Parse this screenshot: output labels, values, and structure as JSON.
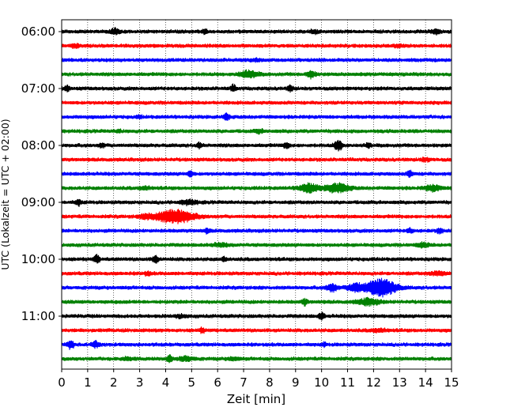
{
  "chart_data": {
    "type": "line",
    "xlabel": "Zeit  [min]",
    "ylabel": "UTC (Lokalzeit = UTC + 02:00)",
    "xlim": [
      0,
      15
    ],
    "xticks": [
      "0",
      "1",
      "2",
      "3",
      "4",
      "5",
      "6",
      "7",
      "8",
      "9",
      "10",
      "11",
      "12",
      "13",
      "14",
      "15"
    ],
    "yticks": [
      {
        "label": "06:00",
        "row": 0
      },
      {
        "label": "07:00",
        "row": 4
      },
      {
        "label": "08:00",
        "row": 8
      },
      {
        "label": "09:00",
        "row": 12
      },
      {
        "label": "10:00",
        "row": 16
      },
      {
        "label": "11:00",
        "row": 20
      }
    ],
    "vertical_grid": true,
    "colors": [
      "#000000",
      "#ff0000",
      "#0000ff",
      "#008000"
    ],
    "traces": [
      {
        "start": "06:00",
        "color": "#000000",
        "events": [
          [
            2.05,
            0.45,
            0.15
          ],
          [
            5.5,
            0.35,
            0.1
          ],
          [
            9.7,
            0.25,
            0.15
          ],
          [
            14.4,
            0.35,
            0.15
          ]
        ]
      },
      {
        "start": "06:15",
        "color": "#ff0000",
        "events": [
          [
            0.5,
            0.2,
            0.2
          ],
          [
            13.0,
            0.15,
            0.2
          ]
        ]
      },
      {
        "start": "06:30",
        "color": "#0000ff",
        "events": [
          [
            7.5,
            0.15,
            0.2
          ]
        ]
      },
      {
        "start": "06:45",
        "color": "#008000",
        "events": [
          [
            7.2,
            0.5,
            0.35
          ],
          [
            9.6,
            0.5,
            0.15
          ]
        ]
      },
      {
        "start": "07:00",
        "color": "#000000",
        "events": [
          [
            0.2,
            0.35,
            0.1
          ],
          [
            6.6,
            0.45,
            0.1
          ],
          [
            8.8,
            0.4,
            0.1
          ]
        ]
      },
      {
        "start": "07:15",
        "color": "#ff0000",
        "events": []
      },
      {
        "start": "07:30",
        "color": "#0000ff",
        "events": [
          [
            6.35,
            0.5,
            0.1
          ],
          [
            3.0,
            0.15,
            0.1
          ]
        ]
      },
      {
        "start": "07:45",
        "color": "#008000",
        "events": [
          [
            2.2,
            0.2,
            0.1
          ],
          [
            7.6,
            0.25,
            0.15
          ]
        ]
      },
      {
        "start": "08:00",
        "color": "#000000",
        "events": [
          [
            1.55,
            0.3,
            0.1
          ],
          [
            5.3,
            0.35,
            0.1
          ],
          [
            8.65,
            0.4,
            0.1
          ],
          [
            10.65,
            0.7,
            0.15
          ],
          [
            11.8,
            0.35,
            0.1
          ]
        ]
      },
      {
        "start": "08:15",
        "color": "#ff0000",
        "events": [
          [
            14.0,
            0.2,
            0.2
          ]
        ]
      },
      {
        "start": "08:30",
        "color": "#0000ff",
        "events": [
          [
            4.95,
            0.4,
            0.1
          ],
          [
            13.4,
            0.45,
            0.1
          ]
        ]
      },
      {
        "start": "08:45",
        "color": "#008000",
        "events": [
          [
            9.5,
            0.6,
            0.35
          ],
          [
            10.6,
            0.65,
            0.45
          ],
          [
            14.3,
            0.4,
            0.3
          ],
          [
            3.2,
            0.2,
            0.2
          ]
        ]
      },
      {
        "start": "09:00",
        "color": "#000000",
        "events": [
          [
            0.65,
            0.4,
            0.1
          ],
          [
            4.9,
            0.3,
            0.3
          ]
        ]
      },
      {
        "start": "09:15",
        "color": "#ff0000",
        "events": [
          [
            4.35,
            1.0,
            0.7
          ],
          [
            3.3,
            0.25,
            0.3
          ]
        ]
      },
      {
        "start": "09:30",
        "color": "#0000ff",
        "events": [
          [
            5.6,
            0.25,
            0.1
          ],
          [
            13.4,
            0.3,
            0.1
          ],
          [
            14.55,
            0.35,
            0.1
          ]
        ]
      },
      {
        "start": "09:45",
        "color": "#008000",
        "events": [
          [
            6.1,
            0.2,
            0.3
          ],
          [
            13.9,
            0.3,
            0.2
          ]
        ]
      },
      {
        "start": "10:00",
        "color": "#000000",
        "events": [
          [
            1.35,
            0.6,
            0.1
          ],
          [
            3.6,
            0.55,
            0.1
          ],
          [
            6.25,
            0.25,
            0.1
          ]
        ]
      },
      {
        "start": "10:15",
        "color": "#ff0000",
        "events": [
          [
            3.3,
            0.2,
            0.15
          ],
          [
            14.5,
            0.25,
            0.3
          ]
        ]
      },
      {
        "start": "10:30",
        "color": "#0000ff",
        "events": [
          [
            12.3,
            1.35,
            0.55
          ],
          [
            11.3,
            0.6,
            0.3
          ],
          [
            10.4,
            0.55,
            0.2
          ]
        ]
      },
      {
        "start": "10:45",
        "color": "#008000",
        "events": [
          [
            9.35,
            0.45,
            0.1
          ],
          [
            11.8,
            0.45,
            0.4
          ]
        ]
      },
      {
        "start": "11:00",
        "color": "#000000",
        "events": [
          [
            10.0,
            0.5,
            0.1
          ],
          [
            4.6,
            0.2,
            0.2
          ]
        ]
      },
      {
        "start": "11:15",
        "color": "#ff0000",
        "events": [
          [
            5.4,
            0.3,
            0.1
          ],
          [
            12.2,
            0.2,
            0.3
          ]
        ]
      },
      {
        "start": "11:30",
        "color": "#0000ff",
        "events": [
          [
            0.35,
            0.6,
            0.12
          ],
          [
            1.3,
            0.45,
            0.12
          ],
          [
            10.1,
            0.4,
            0.05
          ]
        ]
      },
      {
        "start": "11:45",
        "color": "#008000",
        "events": [
          [
            4.15,
            0.55,
            0.1
          ],
          [
            4.8,
            0.3,
            0.3
          ],
          [
            2.5,
            0.2,
            0.2
          ],
          [
            6.6,
            0.2,
            0.2
          ]
        ]
      }
    ]
  }
}
